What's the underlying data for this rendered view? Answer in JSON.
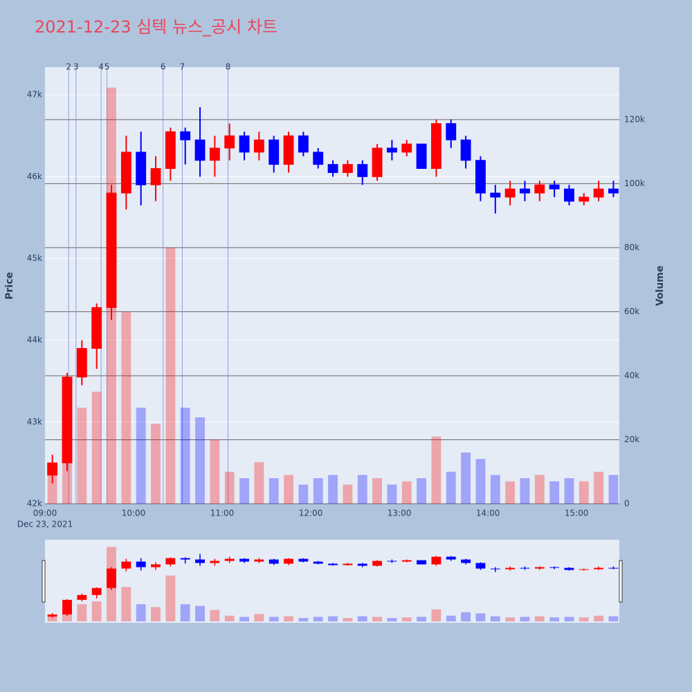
{
  "chart_data": {
    "type": "candlestick",
    "title": "2021-12-23 심텍 뉴스_공시 차트",
    "x": [
      "09:00",
      "09:10",
      "09:20",
      "09:30",
      "09:40",
      "09:50",
      "10:00",
      "10:10",
      "10:20",
      "10:30",
      "10:40",
      "10:50",
      "11:00",
      "11:10",
      "11:20",
      "11:30",
      "11:40",
      "11:50",
      "12:00",
      "12:10",
      "12:20",
      "12:30",
      "12:40",
      "12:50",
      "13:00",
      "13:10",
      "13:20",
      "13:30",
      "13:40",
      "13:50",
      "14:00",
      "14:10",
      "14:20",
      "14:30",
      "14:40",
      "14:50",
      "15:00",
      "15:10",
      "15:20"
    ],
    "open": [
      42350,
      42500,
      43550,
      43900,
      44400,
      45800,
      46300,
      45900,
      46100,
      46550,
      46450,
      46200,
      46350,
      46500,
      46300,
      46450,
      46150,
      46500,
      46300,
      46150,
      46050,
      46150,
      46000,
      46350,
      46300,
      46400,
      46100,
      46650,
      46450,
      46200,
      45800,
      45750,
      45850,
      45800,
      45900,
      45850,
      45700,
      45750,
      45850
    ],
    "high": [
      42600,
      43600,
      44000,
      44450,
      45900,
      46500,
      46550,
      46250,
      46600,
      46600,
      46850,
      46500,
      46650,
      46550,
      46550,
      46500,
      46550,
      46550,
      46350,
      46200,
      46200,
      46200,
      46400,
      46450,
      46450,
      46400,
      46700,
      46700,
      46500,
      46250,
      45900,
      45950,
      45950,
      45950,
      45950,
      45900,
      45800,
      45950,
      45950
    ],
    "low": [
      42250,
      42400,
      43450,
      43650,
      44250,
      45600,
      45650,
      45700,
      45950,
      46150,
      46000,
      46000,
      46200,
      46200,
      46200,
      46050,
      46050,
      46250,
      46100,
      46000,
      46000,
      45900,
      45950,
      46200,
      46250,
      46100,
      46000,
      46350,
      46100,
      45700,
      45550,
      45650,
      45700,
      45700,
      45750,
      45650,
      45650,
      45700,
      45750
    ],
    "close": [
      42500,
      43550,
      43900,
      44400,
      45800,
      46300,
      45900,
      46100,
      46550,
      46450,
      46200,
      46350,
      46500,
      46300,
      46450,
      46150,
      46500,
      46300,
      46150,
      46050,
      46150,
      46000,
      46350,
      46300,
      46400,
      46100,
      46650,
      46450,
      46200,
      45800,
      45750,
      45850,
      45800,
      45900,
      45850,
      45700,
      45750,
      45850,
      45800
    ],
    "volume": [
      12000,
      25000,
      30000,
      35000,
      130000,
      60000,
      30000,
      25000,
      80000,
      30000,
      27000,
      20000,
      10000,
      8000,
      13000,
      8000,
      9000,
      6000,
      8000,
      9000,
      6000,
      9000,
      8000,
      6000,
      7000,
      8000,
      21000,
      10000,
      16000,
      14000,
      9000,
      7000,
      8000,
      9000,
      7000,
      8000,
      7000,
      10000,
      9000
    ],
    "increasing_color": "#ff0000",
    "decreasing_color": "#0000ff",
    "xlim": [
      "09:00",
      "15:29"
    ],
    "xticks": [
      "09:00",
      "10:00",
      "11:00",
      "12:00",
      "13:00",
      "14:00",
      "15:00"
    ],
    "x_date_label": "Dec 23, 2021",
    "ylabel": "Price",
    "y2label": "Volume",
    "ylim": [
      42000,
      47340
    ],
    "yticks": [
      {
        "value": 42000,
        "label": "42k"
      },
      {
        "value": 43000,
        "label": "43k"
      },
      {
        "value": 44000,
        "label": "44k"
      },
      {
        "value": 45000,
        "label": "45k"
      },
      {
        "value": 46000,
        "label": "46k"
      },
      {
        "value": 47000,
        "label": "47k"
      }
    ],
    "y2lim": [
      0,
      136400
    ],
    "y2ticks": [
      0,
      {
        "value": 20000,
        "label": "20k"
      },
      {
        "value": 40000,
        "label": "40k"
      },
      {
        "value": 60000,
        "label": "60k"
      },
      {
        "value": 80000,
        "label": "80k"
      },
      {
        "value": 100000,
        "label": "100k"
      },
      {
        "value": 120000,
        "label": "120k"
      }
    ],
    "events": [
      {
        "x": "09:16",
        "label": "2"
      },
      {
        "x": "09:21",
        "label": "3"
      },
      {
        "x": "09:38",
        "label": "4"
      },
      {
        "x": "09:42",
        "label": "5"
      },
      {
        "x": "10:20",
        "label": "6"
      },
      {
        "x": "10:33",
        "label": "7"
      },
      {
        "x": "11:04",
        "label": "8"
      }
    ],
    "rangeslider": true
  }
}
